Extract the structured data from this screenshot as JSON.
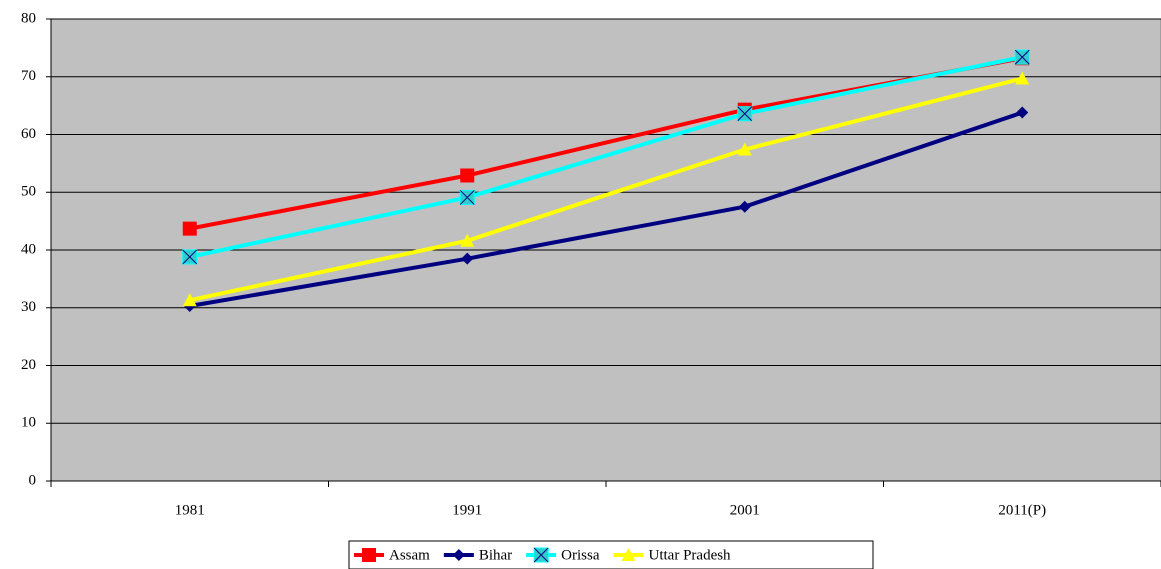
{
  "chart_data": {
    "type": "line",
    "categories": [
      "1981",
      "1991",
      "2001",
      "2011(P)"
    ],
    "series": [
      {
        "name": "Assam",
        "color": "#ff0000",
        "marker": "square",
        "values": [
          43.7,
          52.9,
          64.3,
          73.2
        ]
      },
      {
        "name": "Bihar",
        "color": "#000080",
        "marker": "diamond",
        "values": [
          30.3,
          38.5,
          47.5,
          63.8
        ]
      },
      {
        "name": "Orissa",
        "color": "#00ffff",
        "marker": "square-x",
        "values": [
          38.8,
          49.1,
          63.6,
          73.4
        ]
      },
      {
        "name": "Uttar Pradesh",
        "color": "#ffff00",
        "marker": "triangle",
        "values": [
          31.3,
          41.6,
          57.4,
          69.7
        ]
      }
    ],
    "ylim": [
      0,
      80
    ],
    "yticks": [
      0,
      10,
      20,
      30,
      40,
      50,
      60,
      70,
      80
    ],
    "grid": true,
    "plot_background": "#c0c0c0",
    "legend": "bottom"
  }
}
